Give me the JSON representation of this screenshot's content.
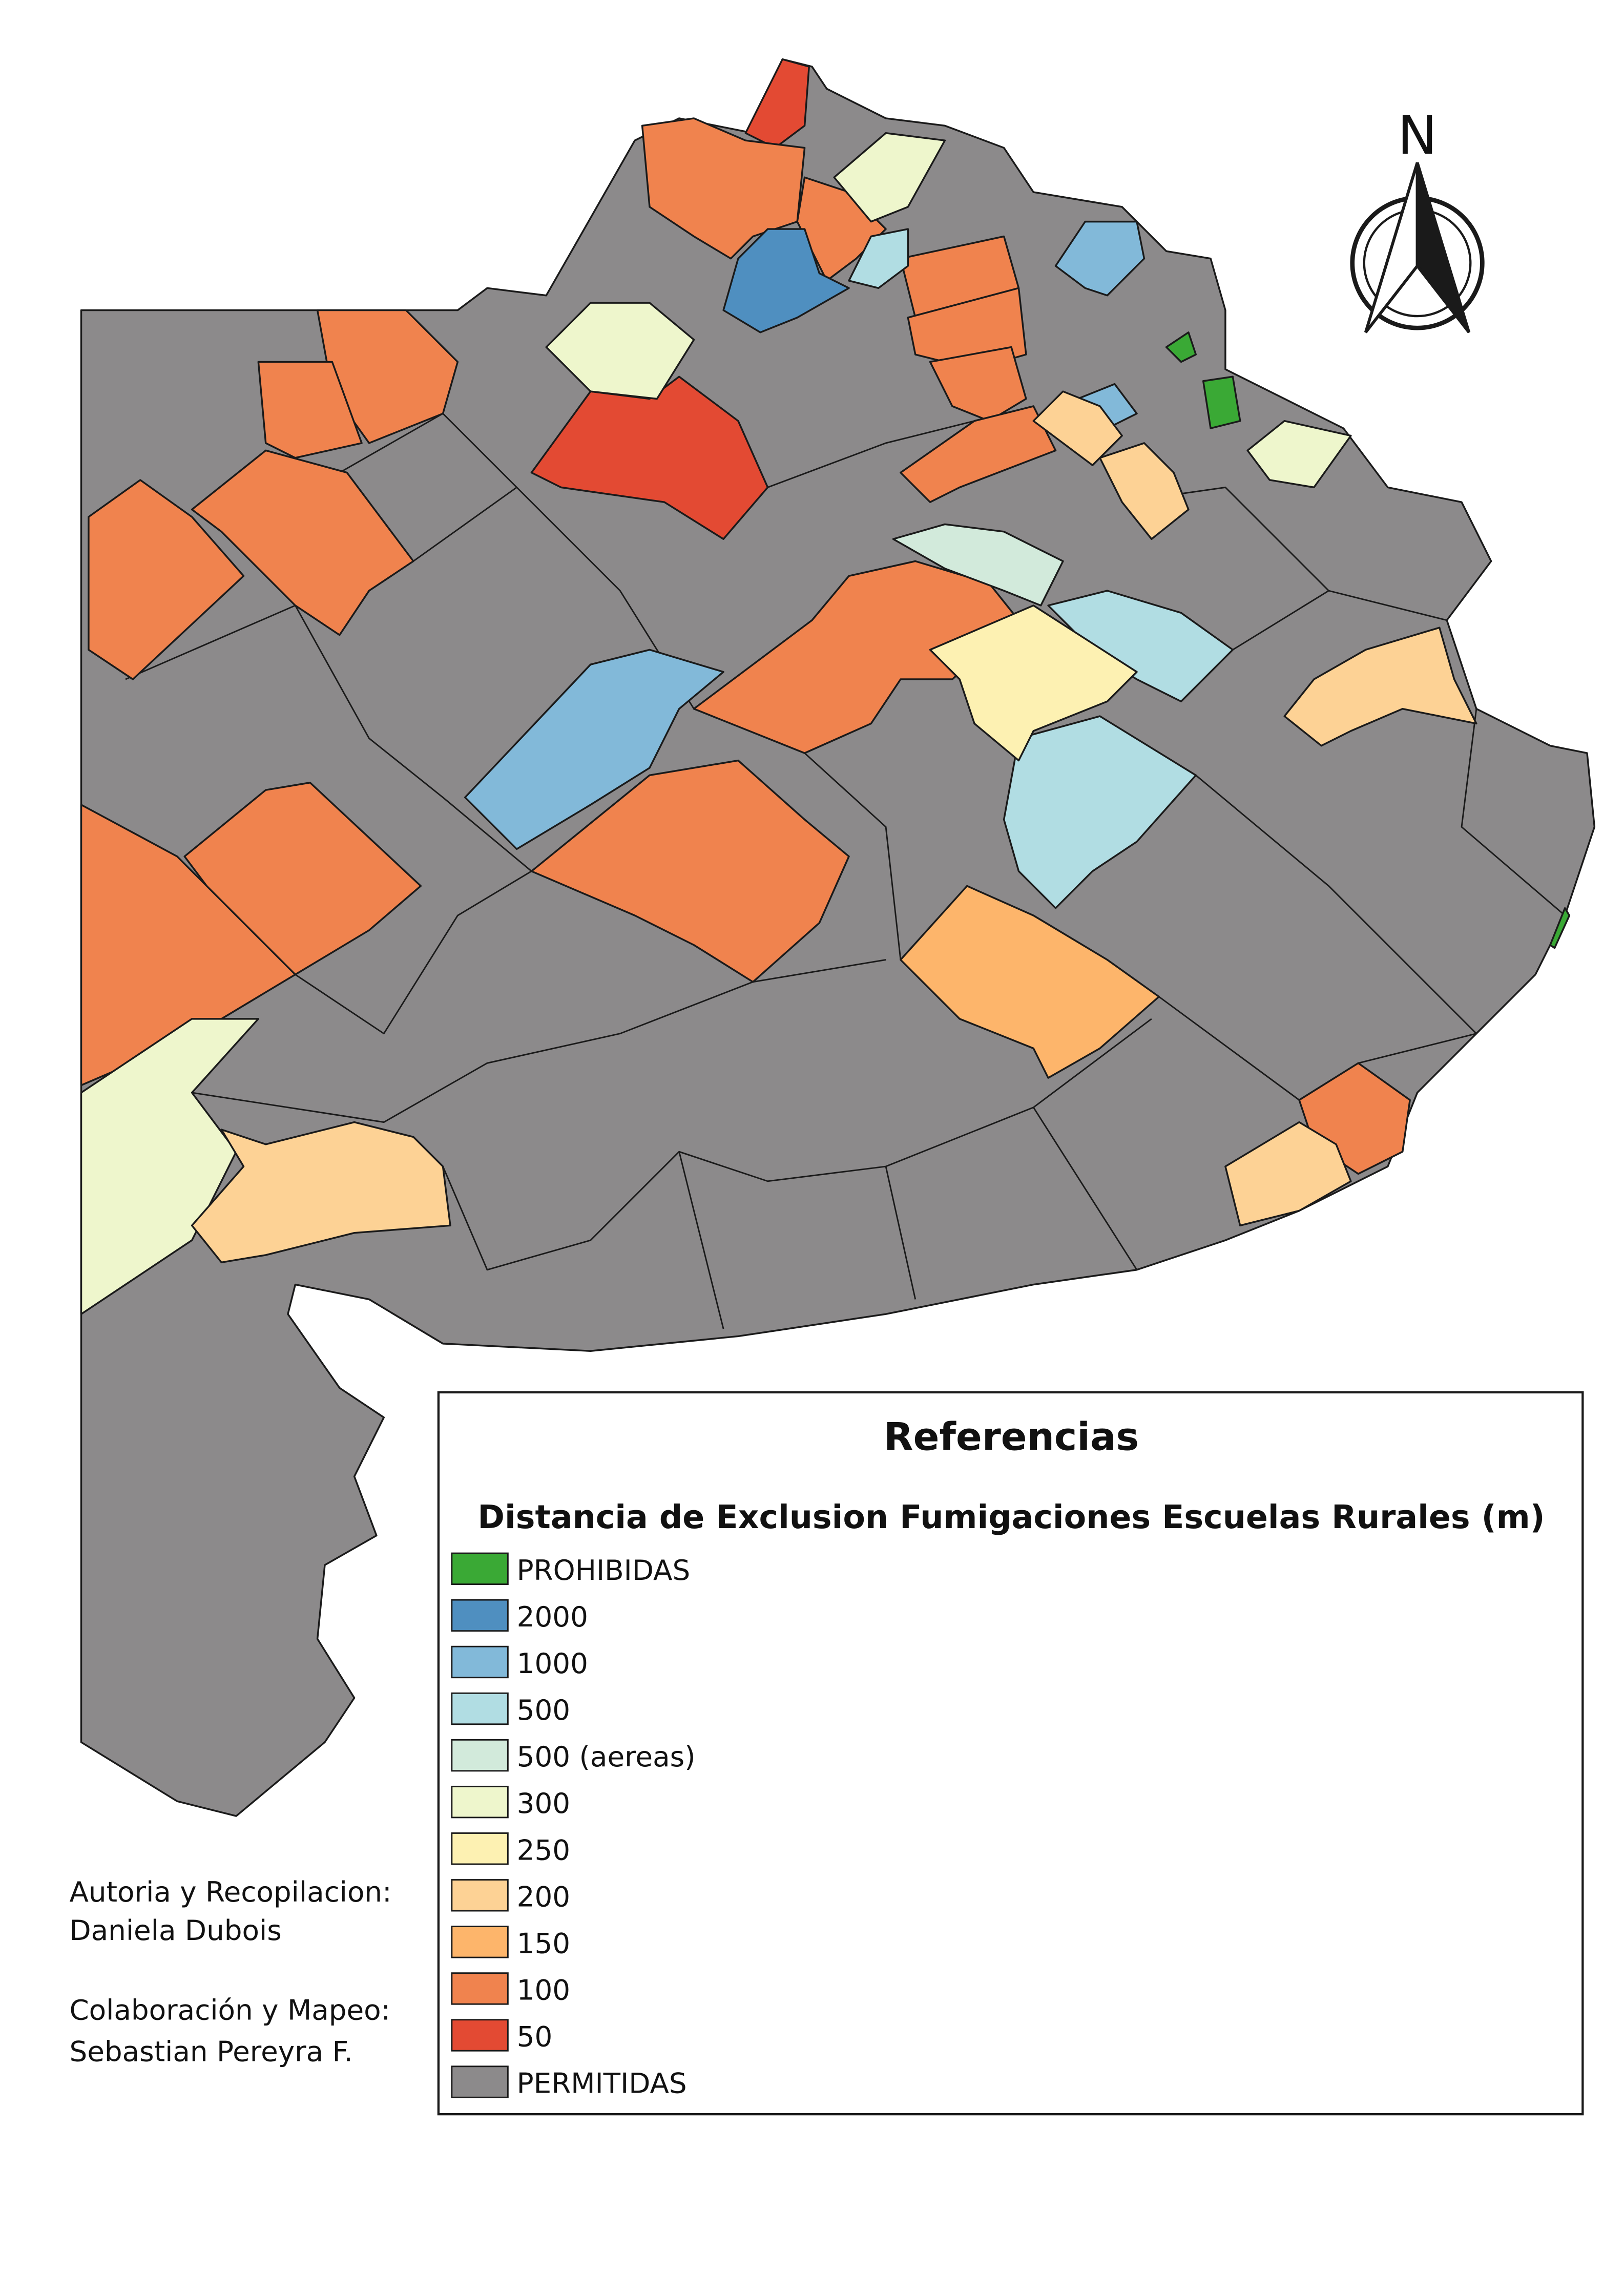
{
  "north": "N",
  "legend": {
    "title": "Referencias",
    "subtitle": "Distancia de Exclusion Fumigaciones Escuelas Rurales (m)",
    "items": [
      {
        "label": "PROHIBIDAS",
        "color": "#3aa935"
      },
      {
        "label": "2000",
        "color": "#4f8fc0"
      },
      {
        "label": "1000",
        "color": "#82b9d9"
      },
      {
        "label": "500",
        "color": "#b1dde3"
      },
      {
        "label": "500 (aereas)",
        "color": "#d2eadb"
      },
      {
        "label": "300",
        "color": "#eef6cc"
      },
      {
        "label": "250",
        "color": "#fdf1b2"
      },
      {
        "label": "200",
        "color": "#fdd295"
      },
      {
        "label": "150",
        "color": "#fdb56b"
      },
      {
        "label": "100",
        "color": "#f0834e"
      },
      {
        "label": "50",
        "color": "#e34a33"
      },
      {
        "label": "PERMITIDAS",
        "color": "#8c8a8b"
      }
    ]
  },
  "credits": [
    "Autoria y Recopilacion:",
    "Daniela Dubois",
    "Colaboración y Mapeo:",
    "Sebastian Pereyra F."
  ]
}
